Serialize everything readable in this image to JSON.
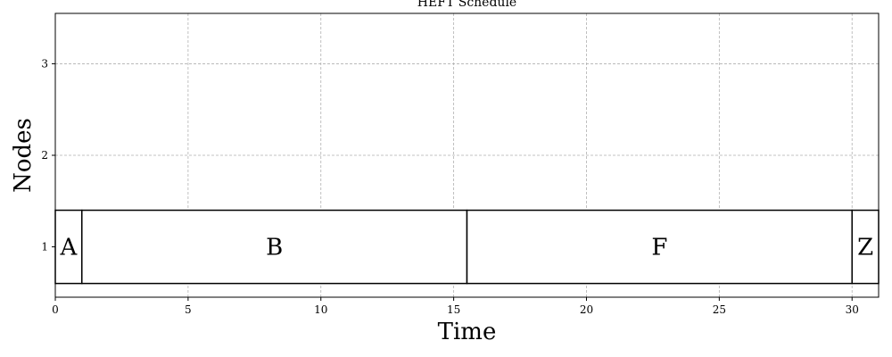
{
  "chart_data": {
    "type": "gantt",
    "title": "HEFT Schedule",
    "xlabel": "Time",
    "ylabel": "Nodes",
    "xlim": [
      0,
      31
    ],
    "ylim": [
      0.45,
      3.55
    ],
    "xticks": [
      0,
      5,
      10,
      15,
      20,
      25,
      30
    ],
    "yticks": [
      1,
      2,
      3
    ],
    "grid": true,
    "bar_height": 0.8,
    "tasks": [
      {
        "name": "A",
        "node": 1,
        "start": 0,
        "end": 1
      },
      {
        "name": "B",
        "node": 1,
        "start": 1,
        "end": 15.5
      },
      {
        "name": "F",
        "node": 1,
        "start": 15.5,
        "end": 30
      },
      {
        "name": "Z",
        "node": 1,
        "start": 30,
        "end": 31
      }
    ],
    "colors": {
      "bar_fill": "#ffffff",
      "bar_edge": "#000000",
      "grid": "#b0b0b0"
    }
  }
}
